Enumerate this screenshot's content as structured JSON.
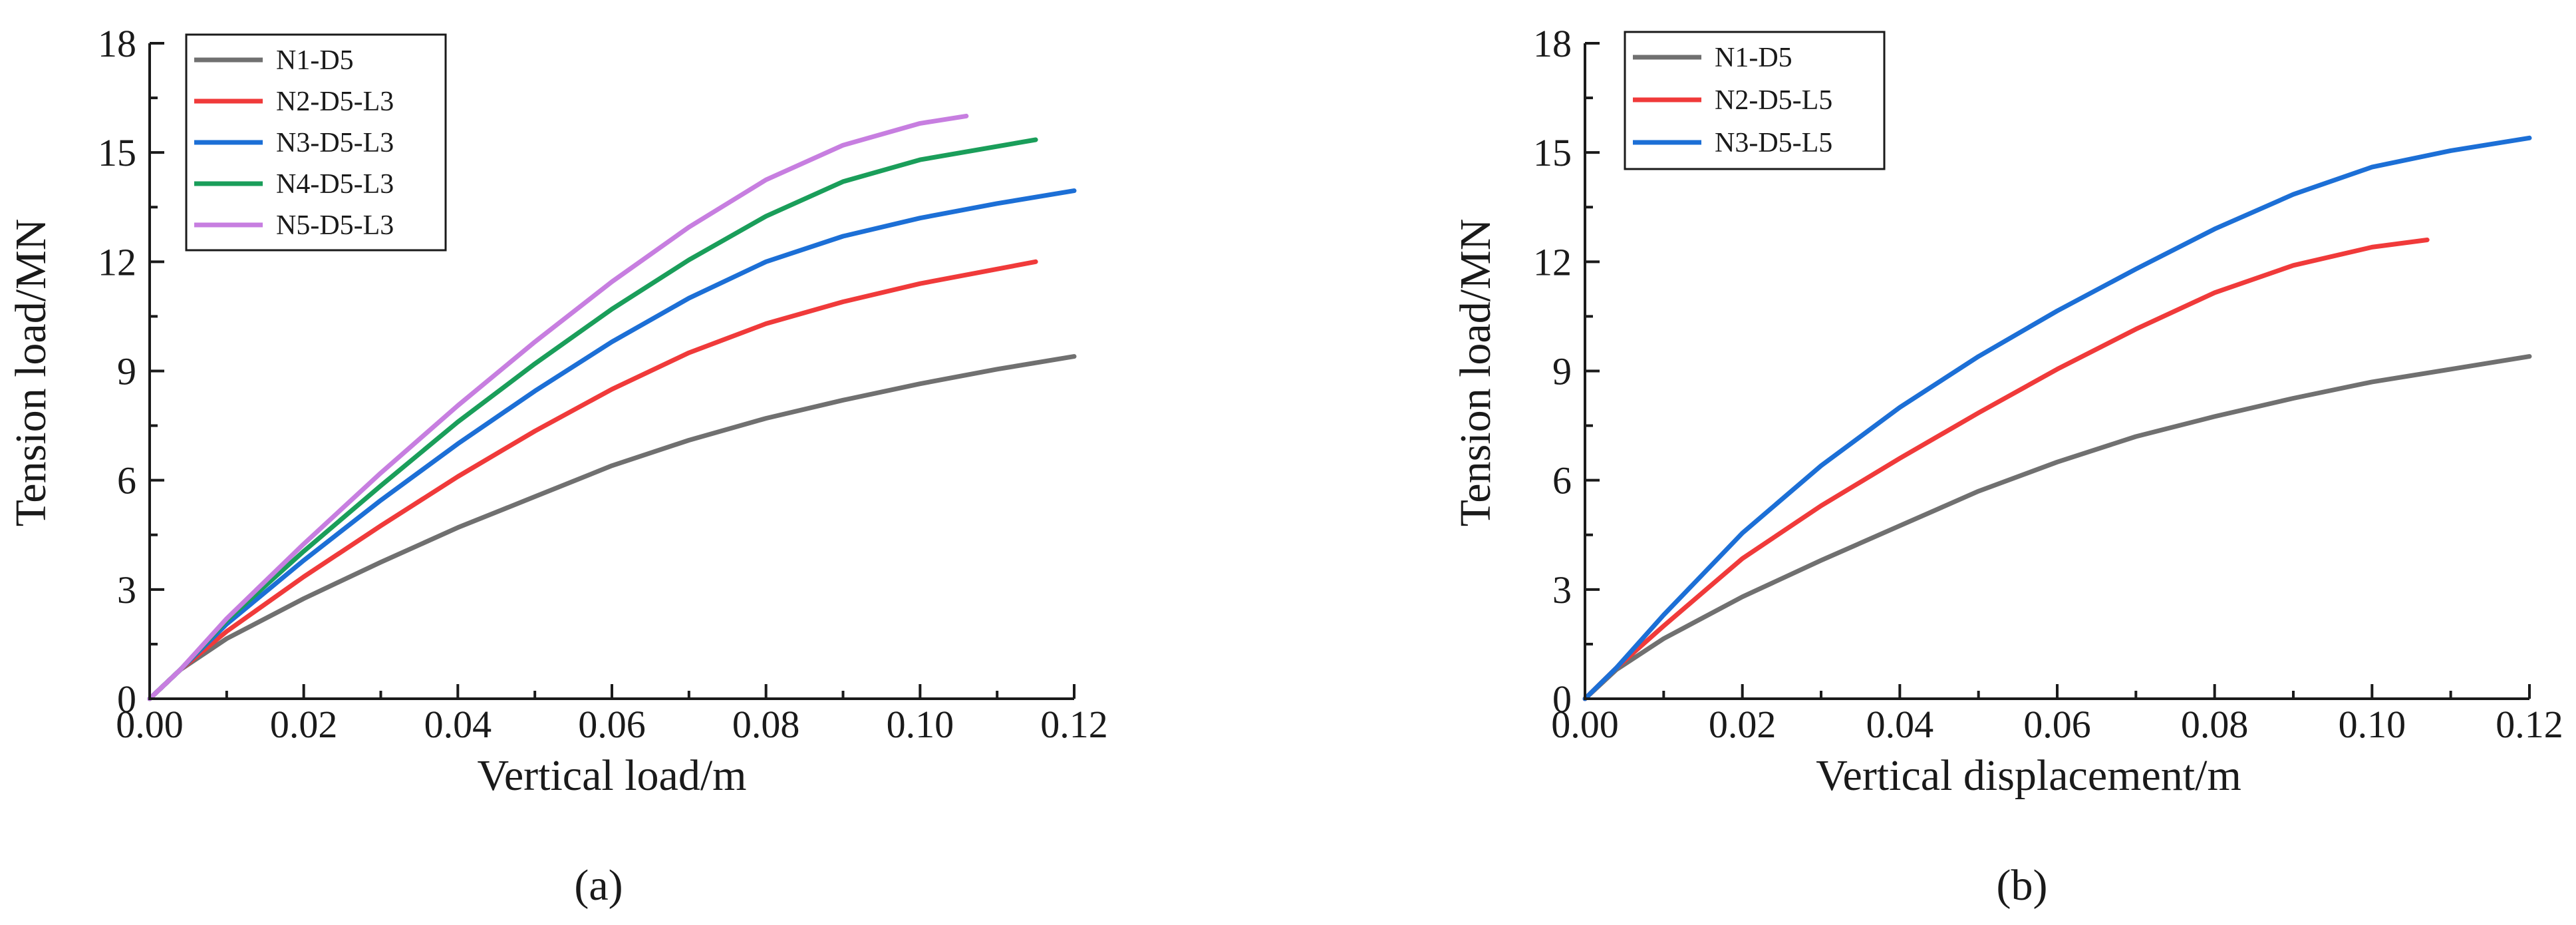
{
  "chart_data": [
    {
      "type": "line",
      "panel_label": "(a)",
      "xlabel": "Vertical load/m",
      "ylabel": "Tension load/MN",
      "xlim": [
        0,
        0.12
      ],
      "ylim": [
        0,
        18
      ],
      "xticks": [
        "0.00",
        "0.02",
        "0.04",
        "0.06",
        "0.08",
        "0.10",
        "0.12"
      ],
      "xtick_values": [
        0,
        0.02,
        0.04,
        0.06,
        0.08,
        0.1,
        0.12
      ],
      "yticks": [
        "0",
        "3",
        "6",
        "9",
        "12",
        "15",
        "18"
      ],
      "ytick_values": [
        0,
        3,
        6,
        9,
        12,
        15,
        18
      ],
      "legend_position": "top-left",
      "series": [
        {
          "name": "N1-D5",
          "color": "#707070",
          "x": [
            0,
            0.004,
            0.01,
            0.02,
            0.03,
            0.04,
            0.05,
            0.06,
            0.07,
            0.08,
            0.09,
            0.1,
            0.11,
            0.12
          ],
          "y": [
            0,
            0.8,
            1.65,
            2.75,
            3.75,
            4.7,
            5.55,
            6.4,
            7.1,
            7.7,
            8.2,
            8.65,
            9.05,
            9.4
          ]
        },
        {
          "name": "N2-D5-L3",
          "color": "#f03a3a",
          "x": [
            0,
            0.004,
            0.01,
            0.02,
            0.03,
            0.04,
            0.05,
            0.06,
            0.07,
            0.08,
            0.09,
            0.1,
            0.115
          ],
          "y": [
            0,
            0.8,
            1.85,
            3.35,
            4.75,
            6.1,
            7.35,
            8.5,
            9.5,
            10.3,
            10.9,
            11.4,
            12.0
          ]
        },
        {
          "name": "N3-D5-L3",
          "color": "#1c6fd6",
          "x": [
            0,
            0.004,
            0.01,
            0.02,
            0.03,
            0.04,
            0.05,
            0.06,
            0.07,
            0.08,
            0.09,
            0.1,
            0.11,
            0.12
          ],
          "y": [
            0,
            0.8,
            2.05,
            3.8,
            5.45,
            7.0,
            8.45,
            9.8,
            11.0,
            12.0,
            12.7,
            13.2,
            13.6,
            13.95
          ]
        },
        {
          "name": "N4-D5-L3",
          "color": "#1a9e5a",
          "x": [
            0,
            0.004,
            0.01,
            0.02,
            0.03,
            0.04,
            0.05,
            0.06,
            0.07,
            0.08,
            0.09,
            0.1,
            0.115
          ],
          "y": [
            0,
            0.8,
            2.15,
            4.05,
            5.85,
            7.6,
            9.2,
            10.7,
            12.05,
            13.25,
            14.2,
            14.8,
            15.35
          ]
        },
        {
          "name": "N5-D5-L3",
          "color": "#c77ee0",
          "x": [
            0,
            0.004,
            0.01,
            0.02,
            0.03,
            0.04,
            0.05,
            0.06,
            0.07,
            0.08,
            0.09,
            0.1,
            0.106
          ],
          "y": [
            0,
            0.8,
            2.2,
            4.25,
            6.2,
            8.05,
            9.8,
            11.45,
            12.95,
            14.25,
            15.2,
            15.8,
            16.0
          ]
        }
      ]
    },
    {
      "type": "line",
      "panel_label": "(b)",
      "xlabel": "Vertical displacement/m",
      "ylabel": "Tension load/MN",
      "xlim": [
        0,
        0.12
      ],
      "ylim": [
        0,
        18
      ],
      "xticks": [
        "0.00",
        "0.02",
        "0.04",
        "0.06",
        "0.08",
        "0.10",
        "0.12"
      ],
      "xtick_values": [
        0,
        0.02,
        0.04,
        0.06,
        0.08,
        0.1,
        0.12
      ],
      "yticks": [
        "0",
        "3",
        "6",
        "9",
        "12",
        "15",
        "18"
      ],
      "ytick_values": [
        0,
        3,
        6,
        9,
        12,
        15,
        18
      ],
      "legend_position": "top-left",
      "series": [
        {
          "name": "N1-D5",
          "color": "#707070",
          "x": [
            0,
            0.004,
            0.01,
            0.02,
            0.03,
            0.04,
            0.05,
            0.06,
            0.07,
            0.08,
            0.09,
            0.1,
            0.11,
            0.12
          ],
          "y": [
            0,
            0.8,
            1.65,
            2.8,
            3.8,
            4.75,
            5.7,
            6.5,
            7.2,
            7.75,
            8.25,
            8.7,
            9.05,
            9.4
          ]
        },
        {
          "name": "N2-D5-L5",
          "color": "#f03a3a",
          "x": [
            0,
            0.004,
            0.01,
            0.02,
            0.03,
            0.04,
            0.05,
            0.06,
            0.07,
            0.08,
            0.09,
            0.1,
            0.107
          ],
          "y": [
            0,
            0.85,
            2.0,
            3.85,
            5.3,
            6.6,
            7.85,
            9.05,
            10.15,
            11.15,
            11.9,
            12.4,
            12.6
          ]
        },
        {
          "name": "N3-D5-L5",
          "color": "#1c6fd6",
          "x": [
            0,
            0.004,
            0.01,
            0.02,
            0.03,
            0.04,
            0.05,
            0.06,
            0.07,
            0.08,
            0.09,
            0.1,
            0.11,
            0.12
          ],
          "y": [
            0,
            0.85,
            2.3,
            4.55,
            6.4,
            8.0,
            9.4,
            10.65,
            11.8,
            12.9,
            13.85,
            14.6,
            15.05,
            15.4
          ]
        }
      ]
    }
  ]
}
